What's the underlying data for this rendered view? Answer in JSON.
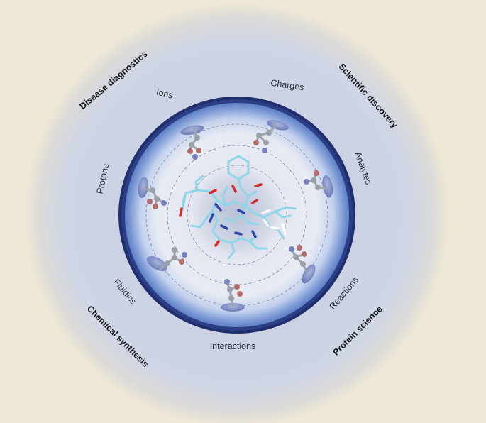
{
  "inner_labels": {
    "ions": "Ions",
    "charges": "Charges",
    "analytes": "Analytes",
    "reactions": "Reactions",
    "interactions": "Interactions",
    "fluidics": "Fluidics",
    "protons": "Protons"
  },
  "outer_labels": {
    "disease_diagnostics": "Disease diagnostics",
    "scientific_discovery": "Scientific discovery",
    "protein_science": "Protein science",
    "chemical_synthesis": "Chemical synthesis"
  },
  "colors": {
    "background": "#efe8d6",
    "halo": "#c9d2e6",
    "ring": "#1f2f6e",
    "disc_inner": "#e9ecf4",
    "disc_edge": "#6f8fd0",
    "dashed_circle": "#7f8799",
    "peptide_bond": "#8fd6e8",
    "nitrogen": "#2d46a8",
    "oxygen": "#d42a2a",
    "ball_grey": "#9aa0a8",
    "ball_red": "#b56c6c",
    "ball_blue": "#7483bf",
    "pad": "#7f8fc4"
  }
}
